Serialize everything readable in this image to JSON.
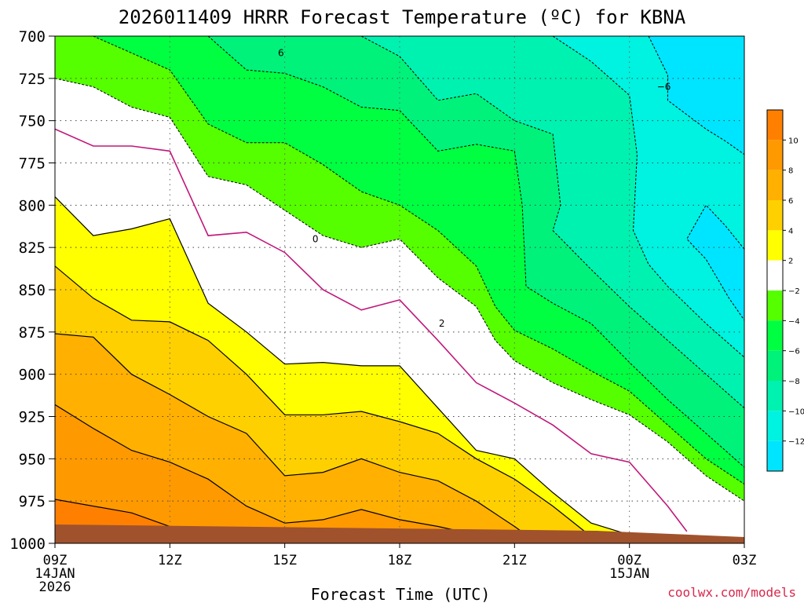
{
  "colors": {
    "ground": "#a0522d",
    "freezing_line": "#c0187a",
    "contour": "#000000",
    "credit": "#d9274a"
  },
  "chart_data": {
    "type": "contour",
    "title": "2026011409 HRRR Forecast Temperature (ºC) for KBNA",
    "xlabel": "Forecast Time (UTC)",
    "credit": "coolwx.com/models",
    "x_range_hours": [
      0,
      18
    ],
    "x_ticks": [
      {
        "hour": 0,
        "label": "09Z",
        "sub1": "14JAN",
        "sub2": "2026"
      },
      {
        "hour": 3,
        "label": "12Z",
        "sub1": "",
        "sub2": ""
      },
      {
        "hour": 6,
        "label": "15Z",
        "sub1": "",
        "sub2": ""
      },
      {
        "hour": 9,
        "label": "18Z",
        "sub1": "",
        "sub2": ""
      },
      {
        "hour": 12,
        "label": "21Z",
        "sub1": "",
        "sub2": ""
      },
      {
        "hour": 15,
        "label": "00Z",
        "sub1": "15JAN",
        "sub2": ""
      },
      {
        "hour": 18,
        "label": "03Z",
        "sub1": "",
        "sub2": ""
      }
    ],
    "ylabel_levels_hPa": [
      "700",
      "725",
      "750",
      "775",
      "800",
      "825",
      "850",
      "875",
      "900",
      "925",
      "950",
      "975",
      "1000"
    ],
    "y_range_hPa": [
      700,
      1000
    ],
    "colorbar": {
      "bands": [
        {
          "min": 10,
          "max": 12,
          "color": "#ff8000"
        },
        {
          "min": 8,
          "max": 10,
          "color": "#ff9900"
        },
        {
          "min": 6,
          "max": 8,
          "color": "#ffb000"
        },
        {
          "min": 4,
          "max": 6,
          "color": "#ffd000"
        },
        {
          "min": 2,
          "max": 4,
          "color": "#ffff00"
        },
        {
          "min": -2,
          "max": 2,
          "color": "#ffffff"
        },
        {
          "min": -4,
          "max": -2,
          "color": "#55ff00"
        },
        {
          "min": -6,
          "max": -4,
          "color": "#00ff40"
        },
        {
          "min": -8,
          "max": -6,
          "color": "#00f27a"
        },
        {
          "min": -10,
          "max": -8,
          "color": "#00f2b0"
        },
        {
          "min": -12,
          "max": -10,
          "color": "#00f2e0"
        },
        {
          "min": -14,
          "max": -12,
          "color": "#00e5ff"
        }
      ],
      "tick_labels": [
        "10",
        "8",
        "6",
        "4",
        "2",
        "−2",
        "−4",
        "−6",
        "−8",
        "−10",
        "−12"
      ]
    },
    "contour_labels": [
      "6",
      "−6",
      "0",
      "2"
    ],
    "isotherms": [
      {
        "temp": 10,
        "points": [
          [
            0,
            974
          ],
          [
            2,
            982
          ],
          [
            3,
            990
          ],
          [
            3.2,
            992
          ]
        ]
      },
      {
        "temp": 8,
        "points": [
          [
            0,
            918
          ],
          [
            1,
            932
          ],
          [
            2,
            945
          ],
          [
            3,
            952
          ],
          [
            4,
            962
          ],
          [
            5,
            978
          ],
          [
            6,
            988
          ],
          [
            7,
            986
          ],
          [
            8,
            980
          ],
          [
            9,
            986
          ],
          [
            10,
            990
          ],
          [
            11,
            995
          ],
          [
            11.9,
            998
          ]
        ]
      },
      {
        "temp": 6,
        "points": [
          [
            0,
            876
          ],
          [
            1,
            878
          ],
          [
            2,
            900
          ],
          [
            3,
            912
          ],
          [
            4,
            925
          ],
          [
            5,
            935
          ],
          [
            6,
            960
          ],
          [
            7,
            958
          ],
          [
            8,
            950
          ],
          [
            9,
            958
          ],
          [
            10,
            963
          ],
          [
            11,
            975
          ],
          [
            12,
            990
          ],
          [
            12.5,
            998
          ]
        ]
      },
      {
        "temp": 4,
        "points": [
          [
            0,
            836
          ],
          [
            1,
            855
          ],
          [
            2,
            868
          ],
          [
            3,
            869
          ],
          [
            4,
            880
          ],
          [
            5,
            900
          ],
          [
            6,
            924
          ],
          [
            7,
            924
          ],
          [
            8,
            922
          ],
          [
            9,
            928
          ],
          [
            10,
            935
          ],
          [
            11,
            950
          ],
          [
            12,
            962
          ],
          [
            13,
            978
          ],
          [
            14,
            996
          ]
        ]
      },
      {
        "temp": 2,
        "points": [
          [
            0,
            795
          ],
          [
            1,
            818
          ],
          [
            2,
            814
          ],
          [
            3,
            808
          ],
          [
            4,
            858
          ],
          [
            5,
            875
          ],
          [
            6,
            894
          ],
          [
            7,
            893
          ],
          [
            8,
            895
          ],
          [
            9,
            895
          ],
          [
            10,
            920
          ],
          [
            11,
            945
          ],
          [
            12,
            950
          ],
          [
            13,
            970
          ],
          [
            14,
            988
          ],
          [
            15,
            995
          ],
          [
            15.5,
            998
          ]
        ]
      },
      {
        "temp": 0,
        "points": [
          [
            0,
            755
          ],
          [
            1,
            765
          ],
          [
            2,
            765
          ],
          [
            3,
            768
          ],
          [
            4,
            818
          ],
          [
            5,
            816
          ],
          [
            6,
            828
          ],
          [
            7,
            850
          ],
          [
            8,
            862
          ],
          [
            9,
            856
          ],
          [
            10,
            880
          ],
          [
            11,
            905
          ],
          [
            12,
            917
          ],
          [
            13,
            930
          ],
          [
            14,
            947
          ],
          [
            15,
            952
          ],
          [
            15.5,
            965
          ],
          [
            16,
            978
          ],
          [
            16.5,
            993
          ]
        ]
      },
      {
        "temp": -2,
        "points": [
          [
            0,
            725
          ],
          [
            1,
            730
          ],
          [
            2,
            742
          ],
          [
            3,
            748
          ],
          [
            4,
            783
          ],
          [
            5,
            788
          ],
          [
            6,
            803
          ],
          [
            7,
            818
          ],
          [
            8,
            825
          ],
          [
            9,
            820
          ],
          [
            10,
            843
          ],
          [
            11,
            860
          ],
          [
            11.5,
            880
          ],
          [
            12,
            892
          ],
          [
            13,
            905
          ],
          [
            14,
            915
          ],
          [
            15,
            924
          ],
          [
            16,
            940
          ],
          [
            17,
            960
          ],
          [
            18,
            975
          ]
        ]
      },
      {
        "temp": -4,
        "points": [
          [
            1,
            700
          ],
          [
            2,
            710
          ],
          [
            3,
            720
          ],
          [
            4,
            752
          ],
          [
            5,
            763
          ],
          [
            6,
            763
          ],
          [
            7,
            776
          ],
          [
            8,
            792
          ],
          [
            9,
            800
          ],
          [
            10,
            815
          ],
          [
            11,
            836
          ],
          [
            11.5,
            860
          ],
          [
            12,
            874
          ],
          [
            13,
            885
          ],
          [
            14,
            898
          ],
          [
            15,
            910
          ],
          [
            16,
            930
          ],
          [
            17,
            950
          ],
          [
            18,
            965
          ]
        ]
      },
      {
        "temp": -6,
        "points": [
          [
            4,
            700
          ],
          [
            5,
            720
          ],
          [
            6,
            722
          ],
          [
            7,
            730
          ],
          [
            8,
            742
          ],
          [
            9,
            744
          ],
          [
            10,
            768
          ],
          [
            11,
            764
          ],
          [
            12,
            768
          ],
          [
            12.2,
            800
          ],
          [
            12.3,
            848
          ],
          [
            13,
            858
          ],
          [
            14,
            870
          ],
          [
            15,
            893
          ],
          [
            16,
            915
          ],
          [
            17,
            935
          ],
          [
            18,
            955
          ]
        ]
      },
      {
        "temp": -8,
        "points": [
          [
            8,
            700
          ],
          [
            9,
            712
          ],
          [
            10,
            738
          ],
          [
            11,
            734
          ],
          [
            12,
            750
          ],
          [
            13,
            758
          ],
          [
            13.2,
            800
          ],
          [
            13,
            815
          ],
          [
            14,
            838
          ],
          [
            15,
            860
          ],
          [
            16,
            880
          ],
          [
            17,
            900
          ],
          [
            18,
            920
          ]
        ]
      },
      {
        "temp": -10,
        "points": [
          [
            13,
            700
          ],
          [
            14,
            715
          ],
          [
            15,
            735
          ],
          [
            15.2,
            770
          ],
          [
            15.1,
            815
          ],
          [
            15.5,
            835
          ],
          [
            16,
            848
          ],
          [
            17,
            870
          ],
          [
            18,
            890
          ]
        ]
      },
      {
        "temp": -12,
        "points": [
          [
            15.5,
            700
          ],
          [
            16,
            723
          ],
          [
            16,
            738
          ],
          [
            17,
            755
          ],
          [
            17.5,
            762
          ],
          [
            18,
            770
          ]
        ]
      },
      {
        "temp": -12,
        "points": [
          [
            18,
            826
          ],
          [
            17.5,
            812
          ],
          [
            17,
            800
          ],
          [
            16.5,
            820
          ],
          [
            17,
            832
          ],
          [
            17.6,
            855
          ],
          [
            18,
            868
          ]
        ]
      }
    ]
  }
}
